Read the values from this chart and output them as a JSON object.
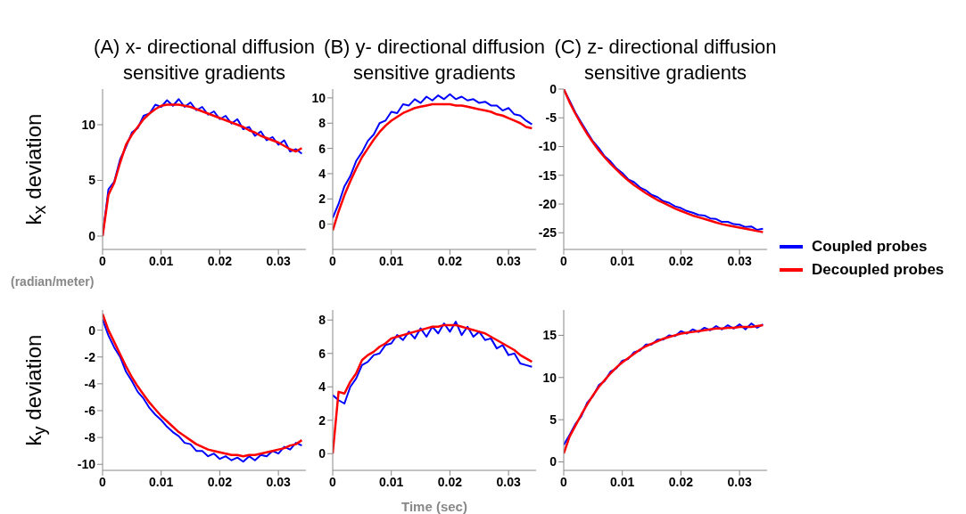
{
  "chart_data": [
    {
      "type": "line",
      "title": "(A) x- directional diffusion sensitive gradients",
      "ylabel": "k$_{x}$ deviation",
      "x": [
        0,
        0.001,
        0.002,
        0.003,
        0.004,
        0.005,
        0.006,
        0.007,
        0.008,
        0.009,
        0.01,
        0.011,
        0.012,
        0.013,
        0.014,
        0.015,
        0.016,
        0.017,
        0.018,
        0.019,
        0.02,
        0.021,
        0.022,
        0.023,
        0.024,
        0.025,
        0.026,
        0.027,
        0.028,
        0.029,
        0.03,
        0.031,
        0.032,
        0.033,
        0.034
      ],
      "xlim": [
        0,
        0.0347
      ],
      "xticks": [
        0,
        0.01,
        0.02,
        0.03
      ],
      "ylim": [
        -1.2,
        13.2
      ],
      "yticks": [
        0,
        5,
        10
      ],
      "series": [
        {
          "color": "#0000ff",
          "values": [
            0,
            4.2,
            4.9,
            6.9,
            8.0,
            9.3,
            9.7,
            10.8,
            11.0,
            11.8,
            11.6,
            12.2,
            11.7,
            12.3,
            11.6,
            12.0,
            11.3,
            11.6,
            10.9,
            11.2,
            10.5,
            10.8,
            10.1,
            10.5,
            9.6,
            9.8,
            9.0,
            9.4,
            8.6,
            8.9,
            8.2,
            8.6,
            7.6,
            7.8,
            7.4
          ]
        },
        {
          "color": "#ff0000",
          "values": [
            0,
            3.7,
            4.8,
            6.6,
            8.2,
            9.1,
            9.8,
            10.5,
            11.0,
            11.4,
            11.7,
            11.8,
            11.8,
            11.8,
            11.7,
            11.6,
            11.4,
            11.2,
            11.0,
            10.8,
            10.6,
            10.4,
            10.2,
            10.0,
            9.8,
            9.5,
            9.3,
            9.0,
            8.8,
            8.6,
            8.4,
            8.1,
            7.8,
            7.6,
            7.9
          ]
        }
      ]
    },
    {
      "type": "line",
      "title": "(B) y- directional diffusion sensitive gradients",
      "x": [
        0,
        0.001,
        0.002,
        0.003,
        0.004,
        0.005,
        0.006,
        0.007,
        0.008,
        0.009,
        0.01,
        0.011,
        0.012,
        0.013,
        0.014,
        0.015,
        0.016,
        0.017,
        0.018,
        0.019,
        0.02,
        0.021,
        0.022,
        0.023,
        0.024,
        0.025,
        0.026,
        0.027,
        0.028,
        0.029,
        0.03,
        0.031,
        0.032,
        0.033,
        0.034
      ],
      "xlim": [
        0,
        0.0347
      ],
      "xticks": [
        0,
        0.01,
        0.02,
        0.03
      ],
      "ylim": [
        -2,
        10.7
      ],
      "yticks": [
        0,
        2,
        4,
        6,
        8,
        10
      ],
      "series": [
        {
          "color": "#0000ff",
          "values": [
            0.5,
            1.6,
            3.0,
            3.8,
            5.0,
            5.7,
            6.6,
            7.1,
            8.0,
            8.2,
            8.9,
            8.8,
            9.5,
            9.4,
            9.9,
            9.6,
            10.1,
            9.8,
            10.2,
            9.9,
            10.3,
            9.9,
            10.1,
            9.8,
            9.9,
            9.6,
            9.7,
            9.4,
            9.4,
            9.0,
            9.2,
            8.7,
            8.6,
            8.2,
            7.9
          ]
        },
        {
          "color": "#ff0000",
          "values": [
            -0.5,
            1.0,
            2.3,
            3.4,
            4.4,
            5.3,
            6.0,
            6.7,
            7.3,
            7.8,
            8.2,
            8.5,
            8.8,
            9.0,
            9.2,
            9.3,
            9.4,
            9.5,
            9.5,
            9.5,
            9.5,
            9.4,
            9.4,
            9.3,
            9.2,
            9.1,
            9.0,
            8.9,
            8.7,
            8.6,
            8.4,
            8.2,
            8.0,
            7.7,
            7.6
          ]
        }
      ]
    },
    {
      "type": "line",
      "title": "(C) z- directional diffusion sensitive gradients",
      "legend": "right",
      "x": [
        0,
        0.001,
        0.002,
        0.003,
        0.004,
        0.005,
        0.006,
        0.007,
        0.008,
        0.009,
        0.01,
        0.011,
        0.012,
        0.013,
        0.014,
        0.015,
        0.016,
        0.017,
        0.018,
        0.019,
        0.02,
        0.021,
        0.022,
        0.023,
        0.024,
        0.025,
        0.026,
        0.027,
        0.028,
        0.029,
        0.03,
        0.031,
        0.032,
        0.033,
        0.034
      ],
      "xlim": [
        0,
        0.0347
      ],
      "xticks": [
        0,
        0.01,
        0.02,
        0.03
      ],
      "ylim": [
        -27.9,
        0
      ],
      "yticks": [
        -25,
        -20,
        -15,
        -10,
        -5,
        0
      ],
      "series": [
        {
          "name": "Coupled probes",
          "color": "#0000ff",
          "values": [
            0,
            -2.0,
            -4.1,
            -5.8,
            -7.5,
            -9.1,
            -10.3,
            -11.7,
            -12.6,
            -13.8,
            -14.6,
            -15.7,
            -16.2,
            -17.1,
            -17.6,
            -18.4,
            -18.8,
            -19.5,
            -19.8,
            -20.4,
            -20.7,
            -21.2,
            -21.5,
            -21.9,
            -22.0,
            -22.5,
            -22.6,
            -23.1,
            -23.1,
            -23.5,
            -23.6,
            -24.0,
            -23.9,
            -24.5,
            -24.3
          ]
        },
        {
          "name": "Decoupled probes",
          "color": "#ff0000",
          "values": [
            0,
            -2.3,
            -4.3,
            -6.1,
            -7.8,
            -9.3,
            -10.7,
            -11.9,
            -13.0,
            -14.0,
            -15.0,
            -15.9,
            -16.7,
            -17.4,
            -18.1,
            -18.7,
            -19.3,
            -19.8,
            -20.3,
            -20.8,
            -21.2,
            -21.6,
            -22.0,
            -22.3,
            -22.6,
            -22.9,
            -23.2,
            -23.5,
            -23.7,
            -23.9,
            -24.1,
            -24.3,
            -24.5,
            -24.7,
            -24.9
          ]
        }
      ]
    },
    {
      "type": "line",
      "ylabel": "k$_{y}$ deviation",
      "annotations": [
        "(radian/meter)"
      ],
      "x": [
        0,
        0.001,
        0.002,
        0.003,
        0.004,
        0.005,
        0.006,
        0.007,
        0.008,
        0.009,
        0.01,
        0.011,
        0.012,
        0.013,
        0.014,
        0.015,
        0.016,
        0.017,
        0.018,
        0.019,
        0.02,
        0.021,
        0.022,
        0.023,
        0.024,
        0.025,
        0.026,
        0.027,
        0.028,
        0.029,
        0.03,
        0.031,
        0.032,
        0.033,
        0.034
      ],
      "xlim": [
        0,
        0.0347
      ],
      "xticks": [
        0,
        0.01,
        0.02,
        0.03
      ],
      "ylim": [
        -10.45,
        1.5
      ],
      "yticks": [
        -10,
        -8,
        -6,
        -4,
        -2,
        0
      ],
      "series": [
        {
          "color": "#0000ff",
          "values": [
            0.8,
            -0.4,
            -1.3,
            -2.0,
            -3.1,
            -3.8,
            -4.6,
            -5.1,
            -5.8,
            -6.3,
            -6.7,
            -7.2,
            -7.6,
            -7.9,
            -8.4,
            -8.5,
            -9.0,
            -9.0,
            -9.4,
            -9.2,
            -9.6,
            -9.4,
            -9.7,
            -9.5,
            -9.8,
            -9.4,
            -9.7,
            -9.3,
            -9.4,
            -9.0,
            -9.2,
            -8.7,
            -8.9,
            -8.4,
            -8.6
          ]
        },
        {
          "color": "#ff0000",
          "values": [
            1.2,
            0.0,
            -0.9,
            -1.8,
            -2.7,
            -3.5,
            -4.2,
            -4.8,
            -5.4,
            -5.9,
            -6.4,
            -6.8,
            -7.2,
            -7.6,
            -7.9,
            -8.2,
            -8.5,
            -8.7,
            -8.9,
            -9.0,
            -9.1,
            -9.2,
            -9.3,
            -9.3,
            -9.4,
            -9.3,
            -9.3,
            -9.2,
            -9.1,
            -9.0,
            -8.9,
            -8.8,
            -8.6,
            -8.5,
            -8.2
          ]
        }
      ]
    },
    {
      "type": "line",
      "xlabel": "Time (sec)",
      "x": [
        0,
        0.001,
        0.002,
        0.003,
        0.004,
        0.005,
        0.006,
        0.007,
        0.008,
        0.009,
        0.01,
        0.011,
        0.012,
        0.013,
        0.014,
        0.015,
        0.016,
        0.017,
        0.018,
        0.019,
        0.02,
        0.021,
        0.022,
        0.023,
        0.024,
        0.025,
        0.026,
        0.027,
        0.028,
        0.029,
        0.03,
        0.031,
        0.032,
        0.033,
        0.034
      ],
      "xlim": [
        0,
        0.0347
      ],
      "xticks": [
        0,
        0.01,
        0.02,
        0.03
      ],
      "ylim": [
        -1,
        8.6
      ],
      "yticks": [
        0,
        2,
        4,
        6,
        8
      ],
      "series": [
        {
          "color": "#0000ff",
          "values": [
            3.5,
            3.2,
            3.0,
            4.0,
            4.5,
            5.3,
            5.5,
            5.9,
            6.0,
            6.5,
            6.6,
            7.1,
            6.8,
            7.3,
            6.9,
            7.5,
            7.0,
            7.6,
            7.2,
            7.8,
            7.3,
            7.9,
            7.1,
            7.6,
            7.0,
            7.3,
            6.8,
            6.9,
            6.3,
            6.5,
            5.9,
            6.0,
            5.4,
            5.3,
            5.2
          ]
        },
        {
          "color": "#ff0000",
          "values": [
            0,
            3.7,
            3.6,
            4.3,
            4.8,
            5.6,
            5.9,
            6.1,
            6.4,
            6.6,
            6.9,
            7.0,
            7.1,
            7.2,
            7.3,
            7.4,
            7.5,
            7.6,
            7.6,
            7.7,
            7.7,
            7.7,
            7.6,
            7.5,
            7.4,
            7.3,
            7.2,
            7.0,
            6.8,
            6.6,
            6.4,
            6.2,
            5.9,
            5.7,
            5.5
          ]
        }
      ]
    },
    {
      "type": "line",
      "x": [
        0,
        0.001,
        0.002,
        0.003,
        0.004,
        0.005,
        0.006,
        0.007,
        0.008,
        0.009,
        0.01,
        0.011,
        0.012,
        0.013,
        0.014,
        0.015,
        0.016,
        0.017,
        0.018,
        0.019,
        0.02,
        0.021,
        0.022,
        0.023,
        0.024,
        0.025,
        0.026,
        0.027,
        0.028,
        0.029,
        0.03,
        0.031,
        0.032,
        0.033,
        0.034
      ],
      "xlim": [
        0,
        0.0347
      ],
      "xticks": [
        0,
        0.01,
        0.02,
        0.03
      ],
      "ylim": [
        -1,
        18
      ],
      "yticks": [
        0,
        5,
        10,
        15
      ],
      "series": [
        {
          "color": "#0000ff",
          "values": [
            2.0,
            3.2,
            4.5,
            5.4,
            7.0,
            7.8,
            9.1,
            9.6,
            10.7,
            11.1,
            12.0,
            12.2,
            13.0,
            13.2,
            13.9,
            13.9,
            14.5,
            14.5,
            15.0,
            14.9,
            15.5,
            15.2,
            15.7,
            15.4,
            15.9,
            15.6,
            16.1,
            15.7,
            16.2,
            15.8,
            16.3,
            15.7,
            16.4,
            15.9,
            16.3
          ]
        },
        {
          "color": "#ff0000",
          "values": [
            1.0,
            3.0,
            4.3,
            5.6,
            6.8,
            7.9,
            8.9,
            9.7,
            10.5,
            11.2,
            11.8,
            12.3,
            12.8,
            13.3,
            13.7,
            14.0,
            14.3,
            14.6,
            14.8,
            15.0,
            15.2,
            15.3,
            15.4,
            15.5,
            15.6,
            15.7,
            15.8,
            15.8,
            15.9,
            15.9,
            16.0,
            16.0,
            16.0,
            16.1,
            16.2
          ]
        }
      ]
    }
  ]
}
